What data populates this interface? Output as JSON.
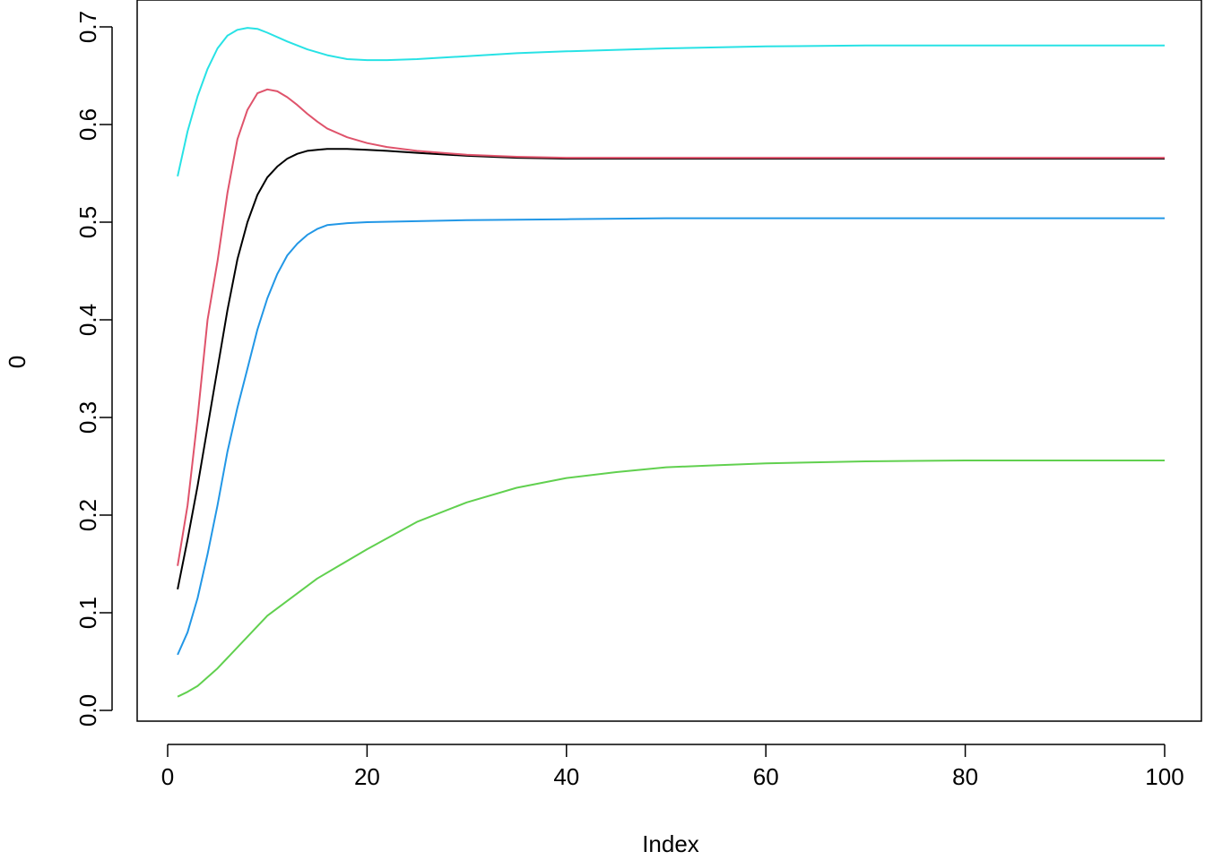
{
  "chart_data": {
    "type": "line",
    "xlabel": "Index",
    "ylabel": "0",
    "xlim": [
      1,
      100
    ],
    "ylim": [
      0.0,
      0.7
    ],
    "x_ticks": [
      0,
      20,
      40,
      60,
      80,
      100
    ],
    "x_tick_labels": [
      "0",
      "20",
      "40",
      "60",
      "80",
      "100"
    ],
    "y_ticks": [
      0.0,
      0.1,
      0.2,
      0.3,
      0.4,
      0.5,
      0.6,
      0.7
    ],
    "y_tick_labels": [
      "0.0",
      "0.1",
      "0.2",
      "0.3",
      "0.4",
      "0.5",
      "0.6",
      "0.7"
    ],
    "grid": false,
    "legend": "none",
    "series": [
      {
        "color": "#000000",
        "x": [
          1,
          2,
          3,
          4,
          5,
          6,
          7,
          8,
          9,
          10,
          11,
          12,
          13,
          14,
          15,
          16,
          17,
          18,
          20,
          22,
          25,
          30,
          35,
          40,
          50,
          60,
          70,
          80,
          90,
          100
        ],
        "y": [
          0.124,
          0.175,
          0.23,
          0.29,
          0.35,
          0.41,
          0.462,
          0.5,
          0.528,
          0.546,
          0.557,
          0.565,
          0.57,
          0.573,
          0.574,
          0.575,
          0.575,
          0.575,
          0.574,
          0.573,
          0.571,
          0.568,
          0.566,
          0.565,
          0.565,
          0.565,
          0.565,
          0.565,
          0.565,
          0.565
        ]
      },
      {
        "color": "#DF536B",
        "x": [
          1,
          2,
          3,
          4,
          5,
          6,
          7,
          8,
          9,
          10,
          11,
          12,
          13,
          14,
          15,
          16,
          18,
          20,
          22,
          25,
          30,
          35,
          40,
          50,
          60,
          70,
          80,
          90,
          100
        ],
        "y": [
          0.148,
          0.21,
          0.3,
          0.4,
          0.46,
          0.53,
          0.585,
          0.615,
          0.632,
          0.636,
          0.634,
          0.628,
          0.62,
          0.611,
          0.603,
          0.596,
          0.587,
          0.581,
          0.577,
          0.573,
          0.569,
          0.567,
          0.566,
          0.566,
          0.566,
          0.566,
          0.566,
          0.566,
          0.566
        ]
      },
      {
        "color": "#61D04F",
        "x": [
          1,
          2,
          3,
          5,
          10,
          15,
          20,
          25,
          30,
          35,
          40,
          45,
          50,
          55,
          60,
          70,
          80,
          90,
          100
        ],
        "y": [
          0.014,
          0.019,
          0.025,
          0.043,
          0.097,
          0.135,
          0.165,
          0.193,
          0.213,
          0.228,
          0.238,
          0.244,
          0.249,
          0.251,
          0.253,
          0.255,
          0.256,
          0.256,
          0.256
        ]
      },
      {
        "color": "#2297E6",
        "x": [
          1,
          2,
          3,
          4,
          5,
          6,
          7,
          8,
          9,
          10,
          11,
          12,
          13,
          14,
          15,
          16,
          18,
          20,
          25,
          30,
          40,
          50,
          60,
          70,
          80,
          90,
          100
        ],
        "y": [
          0.057,
          0.08,
          0.115,
          0.16,
          0.21,
          0.265,
          0.31,
          0.35,
          0.39,
          0.422,
          0.447,
          0.466,
          0.478,
          0.487,
          0.493,
          0.497,
          0.499,
          0.5,
          0.501,
          0.502,
          0.503,
          0.504,
          0.504,
          0.504,
          0.504,
          0.504,
          0.504
        ]
      },
      {
        "color": "#28E2E5",
        "x": [
          1,
          2,
          3,
          4,
          5,
          6,
          7,
          8,
          9,
          10,
          12,
          14,
          16,
          18,
          20,
          22,
          25,
          30,
          35,
          40,
          50,
          60,
          70,
          80,
          90,
          100
        ],
        "y": [
          0.547,
          0.593,
          0.629,
          0.657,
          0.678,
          0.691,
          0.697,
          0.699,
          0.698,
          0.694,
          0.685,
          0.677,
          0.671,
          0.667,
          0.666,
          0.666,
          0.667,
          0.67,
          0.673,
          0.675,
          0.678,
          0.68,
          0.681,
          0.681,
          0.681,
          0.681
        ]
      }
    ]
  }
}
